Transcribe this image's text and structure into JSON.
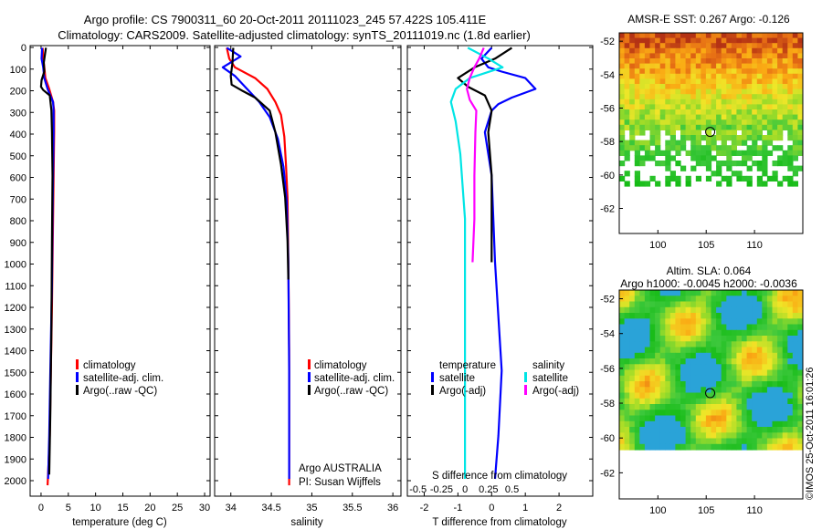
{
  "figure": {
    "title_line1": "Argo profile: CS 7900311_60 20-Oct-2011 20111023_245 57.422S 105.411E",
    "title_line2": "Climatology: CARS2009. Satellite-adjusted climatology: synTS_20111019.nc (1.8d earlier)",
    "credit_line1": "Argo AUSTRALIA",
    "credit_line2": "PI: Susan Wijffels",
    "timestamp": "©IMOS 25-Oct-2011 16:01:26"
  },
  "colors": {
    "climatology": "#ff0000",
    "satellite": "#0000ff",
    "argo": "#000000",
    "salinity_satellite": "#00e5e5",
    "salinity_argo": "#ff00ff"
  },
  "depth_ticks": [
    "0",
    "100",
    "200",
    "300",
    "400",
    "500",
    "600",
    "700",
    "800",
    "900",
    "1000",
    "1100",
    "1200",
    "1300",
    "1400",
    "1500",
    "1600",
    "1700",
    "1800",
    "1900",
    "2000"
  ],
  "chart_data": [
    {
      "type": "line",
      "xlabel": "temperature (deg C)",
      "ylabel": "",
      "xlim": [
        -2,
        31
      ],
      "ylim": [
        2080,
        0
      ],
      "xticks": [
        "0",
        "5",
        "10",
        "15",
        "20",
        "25",
        "30"
      ],
      "legend": [
        "climatology",
        "satellite-adj. clim.",
        "Argo(..raw -QC)"
      ],
      "series": [
        {
          "name": "climatology",
          "x": [
            0.3,
            0.4,
            0.6,
            0.8,
            1.5,
            2.2,
            2.4,
            2.4,
            2.3,
            2.2,
            2.1,
            2.0,
            1.8,
            1.6,
            1.2
          ],
          "y": [
            10,
            50,
            100,
            150,
            200,
            260,
            300,
            400,
            600,
            800,
            1000,
            1200,
            1500,
            1800,
            2030
          ]
        },
        {
          "name": "satellite-adj. clim.",
          "x": [
            0.2,
            0.1,
            0.4,
            0.6,
            1.2,
            2.2,
            2.3,
            2.3,
            2.2,
            2.1,
            2.0,
            1.7,
            1.5,
            1.3
          ],
          "y": [
            10,
            60,
            100,
            150,
            200,
            260,
            300,
            400,
            600,
            800,
            1100,
            1500,
            1800,
            2000
          ]
        },
        {
          "name": "Argo(..raw -QC)",
          "x": [
            0.9,
            0.5,
            0.6,
            0.1,
            0.0,
            0.4,
            1.6,
            1.9,
            2.0,
            2.1,
            2.0,
            1.9,
            1.7,
            1.5
          ],
          "y": [
            10,
            80,
            120,
            160,
            190,
            205,
            230,
            300,
            400,
            600,
            900,
            1300,
            1700,
            1980
          ]
        }
      ]
    },
    {
      "type": "line",
      "xlabel": "salinity",
      "ylabel": "",
      "xlim": [
        33.8,
        36.1
      ],
      "ylim": [
        2080,
        0
      ],
      "xticks": [
        "34",
        "34.5",
        "35",
        "35.5",
        "36"
      ],
      "legend": [
        "climatology",
        "satellite-adj. clim.",
        "Argo(..raw -QC)"
      ],
      "series": [
        {
          "name": "climatology",
          "x": [
            33.95,
            33.98,
            34.05,
            34.3,
            34.45,
            34.55,
            34.62,
            34.66,
            34.68,
            34.7,
            34.71,
            34.72,
            34.72,
            34.72
          ],
          "y": [
            10,
            60,
            100,
            150,
            200,
            260,
            320,
            420,
            550,
            700,
            1000,
            1400,
            1800,
            2030
          ]
        },
        {
          "name": "satellite-adj. clim.",
          "x": [
            33.95,
            34.12,
            33.9,
            34.05,
            34.2,
            34.35,
            34.48,
            34.58,
            34.65,
            34.69,
            34.71,
            34.72,
            34.72
          ],
          "y": [
            10,
            50,
            100,
            140,
            200,
            260,
            330,
            430,
            560,
            720,
            1000,
            1500,
            2000
          ]
        },
        {
          "name": "Argo(..raw -QC)",
          "x": [
            34.03,
            34.02,
            34.0,
            34.01,
            34.15,
            34.3,
            34.48,
            34.55,
            34.62,
            34.67,
            34.7,
            34.71
          ],
          "y": [
            10,
            80,
            140,
            180,
            210,
            240,
            300,
            400,
            550,
            700,
            900,
            1080
          ]
        }
      ]
    },
    {
      "type": "line",
      "xlabel": "T difference from climatology",
      "ylabel": "",
      "xlim": [
        -2.5,
        3
      ],
      "ylim": [
        2080,
        0
      ],
      "xticks": [
        "-2",
        "-1",
        "0",
        "1",
        "2"
      ],
      "x2label": "S difference from climatology",
      "x2ticks": [
        "-0.5",
        "-0.25",
        "0",
        "0.25",
        "0.5"
      ],
      "legend": [
        "temperature",
        "satellite",
        "Argo(-adj)",
        "salinity",
        "satellite",
        "Argo(-adj)"
      ],
      "series": [
        {
          "name": "temperature satellite",
          "x": [
            0,
            -0.3,
            -0.1,
            0.3,
            1.0,
            1.3,
            0.6,
            0.2,
            0.0,
            -0.2,
            0.0,
            0.1,
            0.3,
            0.2,
            0.1
          ],
          "y": [
            10,
            60,
            100,
            120,
            150,
            200,
            240,
            270,
            300,
            400,
            600,
            1000,
            1500,
            1800,
            2000
          ]
        },
        {
          "name": "temperature Argo(-adj)",
          "x": [
            0.6,
            0.1,
            -0.5,
            -1.0,
            -0.7,
            -0.2,
            0.0,
            -0.1,
            0.0,
            0.0,
            0.0
          ],
          "y": [
            10,
            60,
            100,
            150,
            190,
            230,
            300,
            400,
            600,
            800,
            1000
          ]
        },
        {
          "name": "salinity satellite",
          "x": [
            0.03,
            0.25,
            0.4,
            0.05,
            -0.1,
            -0.15,
            -0.1,
            -0.05,
            0,
            0,
            0
          ],
          "y": [
            10,
            60,
            100,
            150,
            200,
            260,
            350,
            500,
            800,
            1200,
            2000
          ]
        },
        {
          "name": "salinity Argo(-adj)",
          "x": [
            0.2,
            0.15,
            0.1,
            0.05,
            0.02,
            0.05,
            0.12,
            0.11,
            0.1,
            0.1,
            0.08
          ],
          "y": [
            10,
            60,
            100,
            150,
            200,
            250,
            300,
            400,
            600,
            800,
            1000
          ]
        }
      ]
    },
    {
      "type": "heatmap",
      "title": "AMSR-E SST: 0.267 Argo: -0.126",
      "xlim": [
        96,
        115
      ],
      "ylim": [
        -63.5,
        -51.5
      ],
      "xticks": [
        "100",
        "105",
        "110"
      ],
      "yticks": [
        "-52",
        "-54",
        "-56",
        "-58",
        "-60",
        "-62"
      ],
      "float_position": [
        105.411,
        -57.422
      ]
    },
    {
      "type": "heatmap",
      "title": "Altim. SLA: 0.064",
      "subtitle": "Argo h1000: -0.0045 h2000: -0.0036",
      "xlim": [
        96,
        115
      ],
      "ylim": [
        -63.5,
        -51.5
      ],
      "xticks": [
        "100",
        "105",
        "110"
      ],
      "yticks": [
        "-52",
        "-54",
        "-56",
        "-58",
        "-60",
        "-62"
      ],
      "float_position": [
        105.411,
        -57.422
      ]
    }
  ]
}
